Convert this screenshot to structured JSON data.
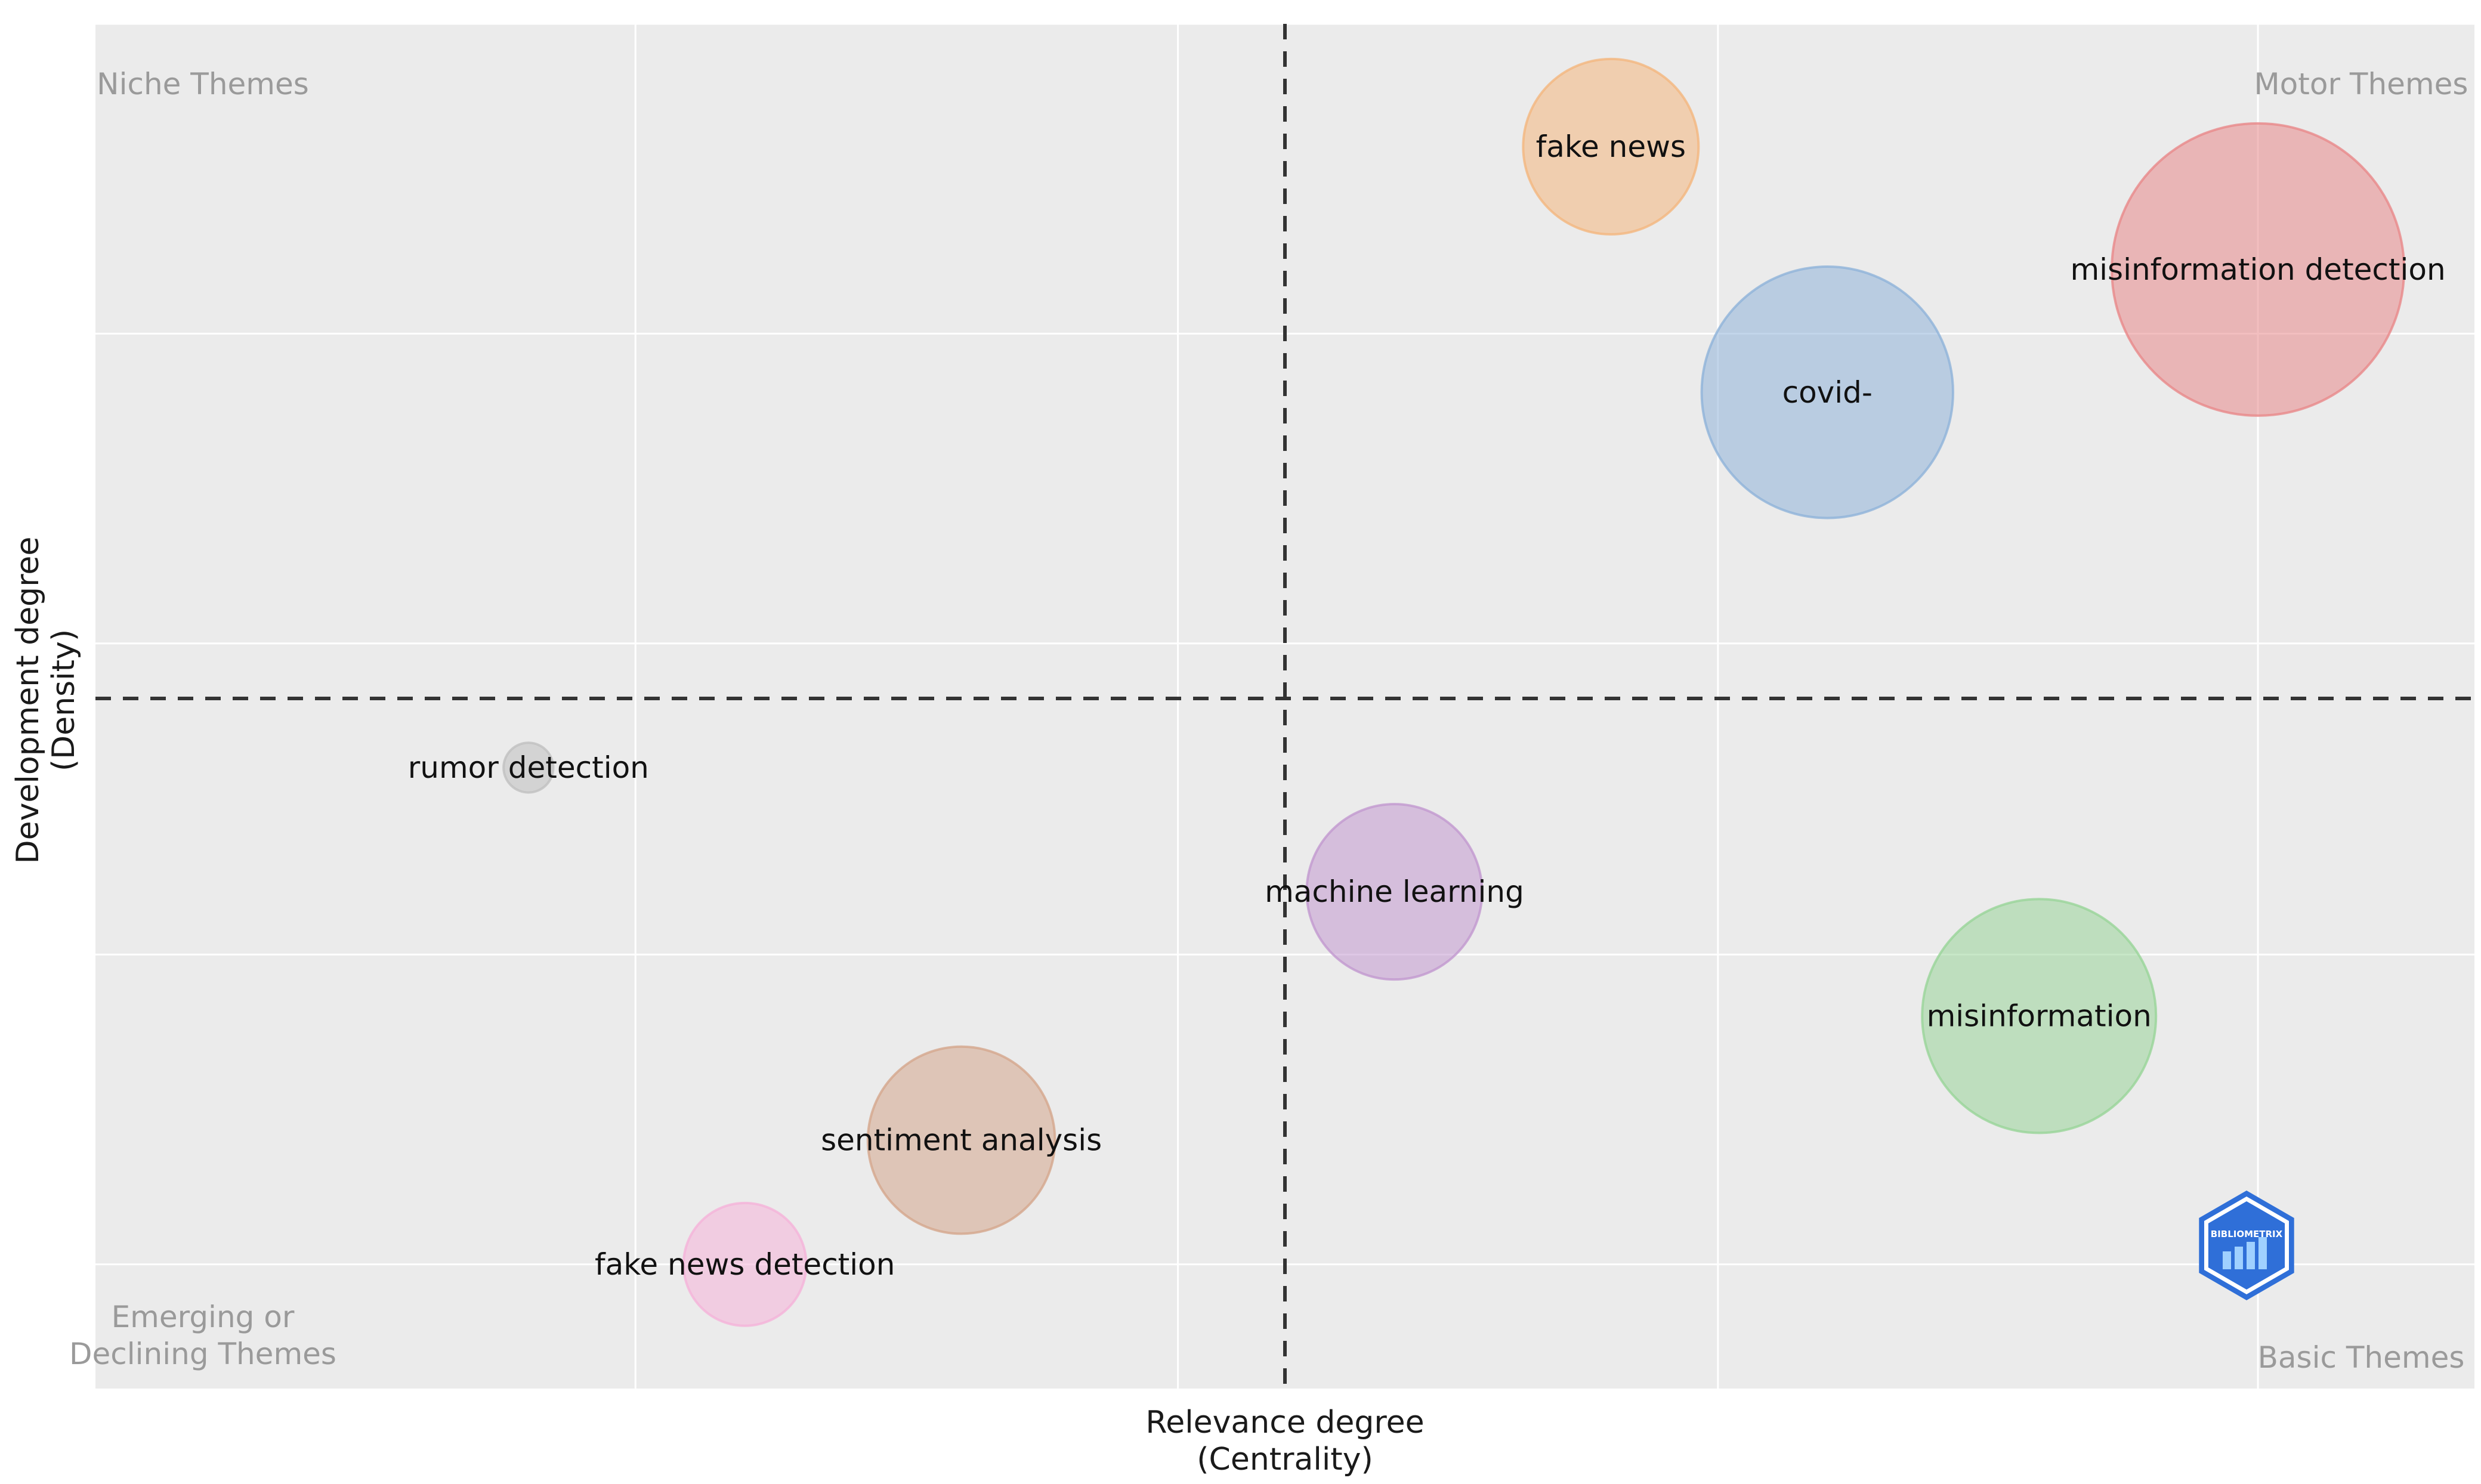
{
  "chart_data": {
    "type": "scatter",
    "subtype": "thematic-map-bubble",
    "xlabel_lines": [
      "Relevance degree",
      "(Centrality)"
    ],
    "ylabel_lines": [
      "Development degree",
      "(Density)"
    ],
    "xlim": [
      0,
      1
    ],
    "ylim": [
      0,
      1
    ],
    "x_divider": 0.5,
    "y_divider": 0.5,
    "grid": true,
    "quadrants": {
      "top_left": [
        "Niche Themes"
      ],
      "top_right": [
        "Motor Themes"
      ],
      "bottom_left": [
        "Emerging or",
        "Declining Themes"
      ],
      "bottom_right": [
        "Basic Themes"
      ]
    },
    "points": [
      {
        "label": "fake news",
        "x": 0.637,
        "y": 0.91,
        "size": 0.3,
        "color": "#f4b67e"
      },
      {
        "label": "misinformation detection",
        "x": 0.909,
        "y": 0.82,
        "size": 0.5,
        "color": "#e8888a"
      },
      {
        "label": "covid-",
        "x": 0.728,
        "y": 0.73,
        "size": 0.43,
        "color": "#8fb3d9"
      },
      {
        "label": "rumor detection",
        "x": 0.182,
        "y": 0.455,
        "size": 0.085,
        "color": "#c0c0c0"
      },
      {
        "label": "machine learning",
        "x": 0.546,
        "y": 0.364,
        "size": 0.3,
        "color": "#c299cf"
      },
      {
        "label": "misinformation",
        "x": 0.817,
        "y": 0.273,
        "size": 0.4,
        "color": "#99d499"
      },
      {
        "label": "sentiment analysis",
        "x": 0.364,
        "y": 0.182,
        "size": 0.32,
        "color": "#d4a68c"
      },
      {
        "label": "fake news detection",
        "x": 0.273,
        "y": 0.091,
        "size": 0.21,
        "color": "#f5b3d9"
      }
    ]
  },
  "colors": {
    "panel_background": "#ebebeb",
    "grid": "#ffffff",
    "divider": "#333333",
    "quadrant_text": "#9a9a9a",
    "logo": "#2f6fd8"
  },
  "logo": {
    "icon": "bibliometrix-logo-icon",
    "text": "BIBLIOMETRIX"
  }
}
